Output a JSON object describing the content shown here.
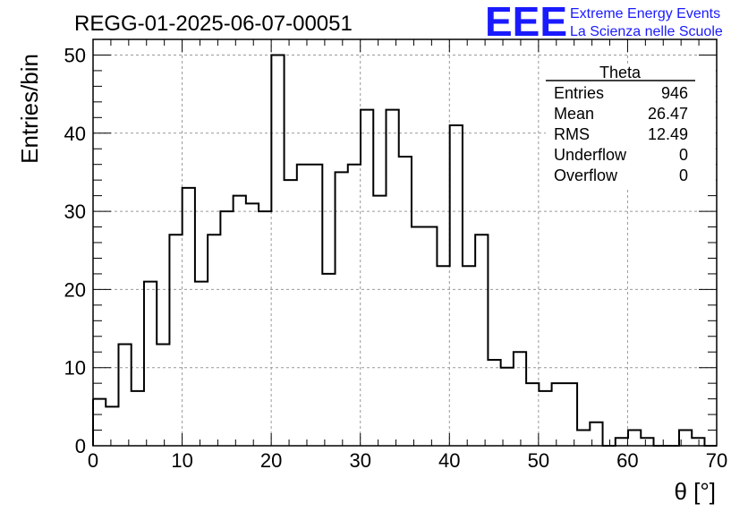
{
  "header": {
    "run_title": "REGG-01-2025-06-07-00051",
    "logo_text": "EEE",
    "logo_line1": "Extreme Energy Events",
    "logo_line2": "La Scienza nelle Scuole",
    "logo_color": "#1a1aff"
  },
  "stats_box": {
    "title": "Theta",
    "rows": [
      {
        "label": "Entries",
        "value": "946"
      },
      {
        "label": "Mean",
        "value": "26.47"
      },
      {
        "label": "RMS",
        "value": "12.49"
      },
      {
        "label": "Underflow",
        "value": "0"
      },
      {
        "label": "Overflow",
        "value": "0"
      }
    ]
  },
  "chart_data": {
    "type": "bar",
    "histogram": true,
    "bin_width": 1.43,
    "bin_edges_start": 0,
    "values": [
      6,
      5,
      13,
      7,
      21,
      13,
      27,
      33,
      21,
      27,
      30,
      32,
      31,
      30,
      50,
      34,
      36,
      36,
      22,
      35,
      36,
      43,
      32,
      43,
      37,
      28,
      28,
      23,
      41,
      23,
      27,
      11,
      10,
      12,
      8,
      7,
      8,
      8,
      2,
      3,
      0,
      1,
      2,
      1,
      0,
      0,
      2,
      1,
      0
    ],
    "xlabel": "θ [°]",
    "ylabel": "Entries/bin",
    "xlim": [
      0,
      70
    ],
    "ylim": [
      0,
      52
    ],
    "xticks": [
      "0",
      "10",
      "20",
      "30",
      "40",
      "50",
      "60",
      "70"
    ],
    "yticks": [
      "0",
      "10",
      "20",
      "30",
      "40",
      "50"
    ],
    "grid": true,
    "line_color": "#000000"
  }
}
